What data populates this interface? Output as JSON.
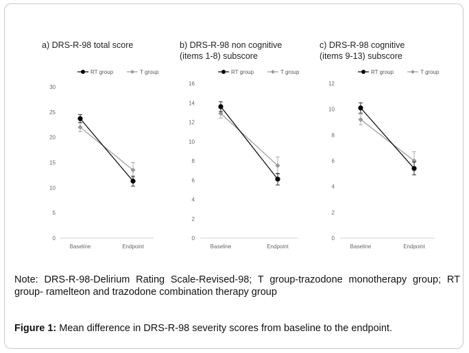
{
  "chart_data": [
    {
      "type": "line",
      "title": "a) DRS-R-98 total score",
      "categories": [
        "Baseline",
        "Endpoint"
      ],
      "ylim": [
        0,
        30
      ],
      "yticks": [
        0,
        5,
        10,
        15,
        20,
        25,
        30
      ],
      "legend": "top",
      "series": [
        {
          "name": "RT group",
          "values": [
            23.7,
            11.3
          ],
          "err": [
            0.8,
            1.0
          ],
          "color": "#000000",
          "marker": "circle"
        },
        {
          "name": "T group",
          "values": [
            22.0,
            13.5
          ],
          "err": [
            0.9,
            1.5
          ],
          "color": "#999999",
          "marker": "diamond"
        }
      ]
    },
    {
      "type": "line",
      "title": "b) DRS-R-98 non cognitive\n(items 1-8) subscore",
      "categories": [
        "Baseline",
        "Endpoint"
      ],
      "ylim": [
        0,
        16
      ],
      "yticks": [
        0,
        2,
        4,
        6,
        8,
        10,
        12,
        14,
        16
      ],
      "legend": "top",
      "series": [
        {
          "name": "RT group",
          "values": [
            13.6,
            6.1
          ],
          "err": [
            0.5,
            0.6
          ],
          "color": "#000000",
          "marker": "circle"
        },
        {
          "name": "T group",
          "values": [
            12.9,
            7.5
          ],
          "err": [
            0.5,
            0.9
          ],
          "color": "#999999",
          "marker": "diamond"
        }
      ]
    },
    {
      "type": "line",
      "title": "c) DRS-R-98 cognitive\n(items 9-13) subscore",
      "categories": [
        "Baseline",
        "Endpoint"
      ],
      "ylim": [
        0,
        12
      ],
      "yticks": [
        0,
        2,
        4,
        6,
        8,
        10,
        12
      ],
      "legend": "top",
      "series": [
        {
          "name": "RT group",
          "values": [
            10.1,
            5.4
          ],
          "err": [
            0.4,
            0.5
          ],
          "color": "#000000",
          "marker": "circle"
        },
        {
          "name": "T group",
          "values": [
            9.2,
            6.0
          ],
          "err": [
            0.4,
            0.7
          ],
          "color": "#999999",
          "marker": "diamond"
        }
      ]
    }
  ],
  "note": "Note: DRS-R-98-Delirium Rating Scale-Revised-98; T group-trazodone monotherapy group; RT group- ramelteon and trazodone combination therapy group",
  "caption": {
    "label": "Figure 1:",
    "text": " Mean difference in DRS-R-98 severity scores from baseline to the endpoint."
  }
}
